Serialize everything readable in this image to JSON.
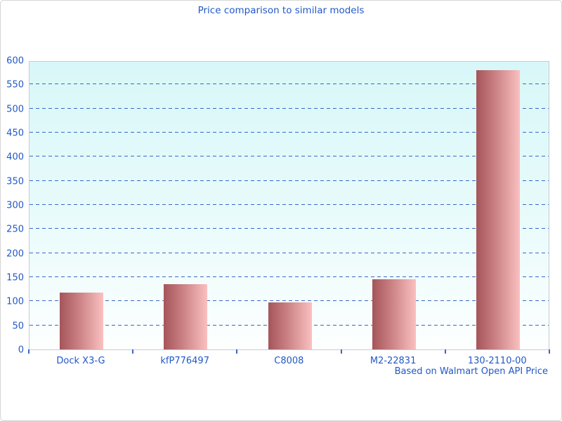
{
  "title": "Price comparison to similar models",
  "footer": "Based on Walmart Open API Price",
  "chart_data": {
    "type": "bar",
    "title": "Price comparison to similar models",
    "categories": [
      "Dock X3-G",
      "kfP776497",
      "C8008",
      "M2-22831",
      "130-2110-00"
    ],
    "values": [
      118,
      135,
      98,
      145,
      580
    ],
    "xlabel": "",
    "ylabel": "",
    "ylim": [
      0,
      600
    ],
    "ytick_step": 50,
    "ytick_labels": [
      "0",
      "50",
      "100",
      "150",
      "200",
      "250",
      "300",
      "350",
      "400",
      "450",
      "500",
      "550",
      "600"
    ],
    "grid": "horizontal-dashed",
    "legend": "none",
    "annotation": "Based on Walmart Open API Price"
  },
  "colors": {
    "text": "#2158c8",
    "grid": "#3a67c8",
    "bar_dark": "#a5555a",
    "bar_mid": "#c97f82",
    "bar_light": "#fac0c0",
    "plot_bg_top": "#d8f7f8",
    "plot_bg_bottom": "#fdfffe",
    "plot_border": "#c5ccd3",
    "outer_border": "#d6d6d6"
  }
}
